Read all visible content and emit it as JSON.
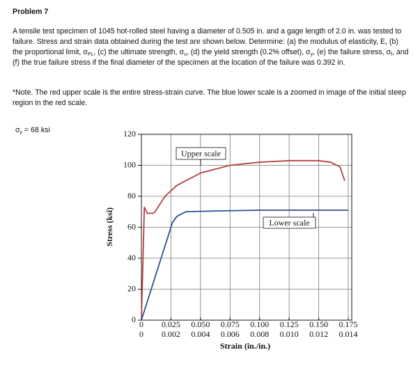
{
  "header": {
    "title": "Problem 7"
  },
  "problem": {
    "text": [
      "A tensile test specimen of 1045 hot-rolled steel having a diameter of 0.505 in. and a gage length of 2.0 in. was tested to failure. Stress and strain data obtained during the test are shown below. Determine: (a) the modulus of elasticity, E, (b) the proportional limit, σ",
      "PL",
      ", (c) the ultimate strength, σ",
      "u",
      ", (d) the yield strength (0.2% offset), σ",
      "y",
      ", (e) the failure stress, σ",
      "f",
      ", and (f) the true failure stress if the final diameter of the specimen at the location of the failure was 0.392 in."
    ]
  },
  "note": {
    "text": "*Note. The red upper scale is the entire stress-strain curve.  The blue lower scale is a zoomed in image of the initial steep region in the red scale."
  },
  "answer": {
    "text": [
      "σ",
      "y",
      " = 68 ksi"
    ]
  },
  "chart_data": {
    "type": "line",
    "xlabel": "Strain (in./in.)",
    "ylabel": "Stress (ksi)",
    "xlim": [
      0,
      0.175
    ],
    "xticks": [
      0,
      0.025,
      {
        "value": 0.05,
        "label": "0.050"
      },
      0.075,
      {
        "value": 0.1,
        "label": "0.100"
      },
      0.125,
      {
        "value": 0.15,
        "label": "0.150"
      },
      0.175
    ],
    "x2lim": [
      0,
      0.014
    ],
    "x2ticks": [
      0,
      0.002,
      0.004,
      0.006,
      0.008,
      {
        "value": 0.01,
        "label": "0.010"
      },
      0.012,
      0.014
    ],
    "ylim": [
      0,
      120
    ],
    "yticks": [
      0,
      20,
      40,
      60,
      80,
      100,
      120
    ],
    "grid": true,
    "series": [
      {
        "name": "Upper scale",
        "color": "#b5413f",
        "xaxis": "x",
        "x": [
          0,
          0.0025,
          0.005,
          0.01,
          0.0115,
          0.02,
          0.03,
          0.05,
          0.075,
          0.1,
          0.125,
          0.15,
          0.16,
          0.168,
          0.172
        ],
        "values": [
          0,
          73,
          69,
          69,
          70,
          80,
          87,
          95,
          100,
          102,
          103,
          103,
          102,
          99,
          90
        ]
      },
      {
        "name": "Lower scale",
        "color": "#2e4f8f",
        "xaxis": "x2",
        "x": [
          0,
          0.0021,
          0.0024,
          0.003,
          0.005,
          0.008,
          0.01,
          0.012,
          0.014
        ],
        "values": [
          0,
          63,
          67,
          70,
          70.5,
          71,
          71,
          71,
          71
        ]
      }
    ]
  }
}
